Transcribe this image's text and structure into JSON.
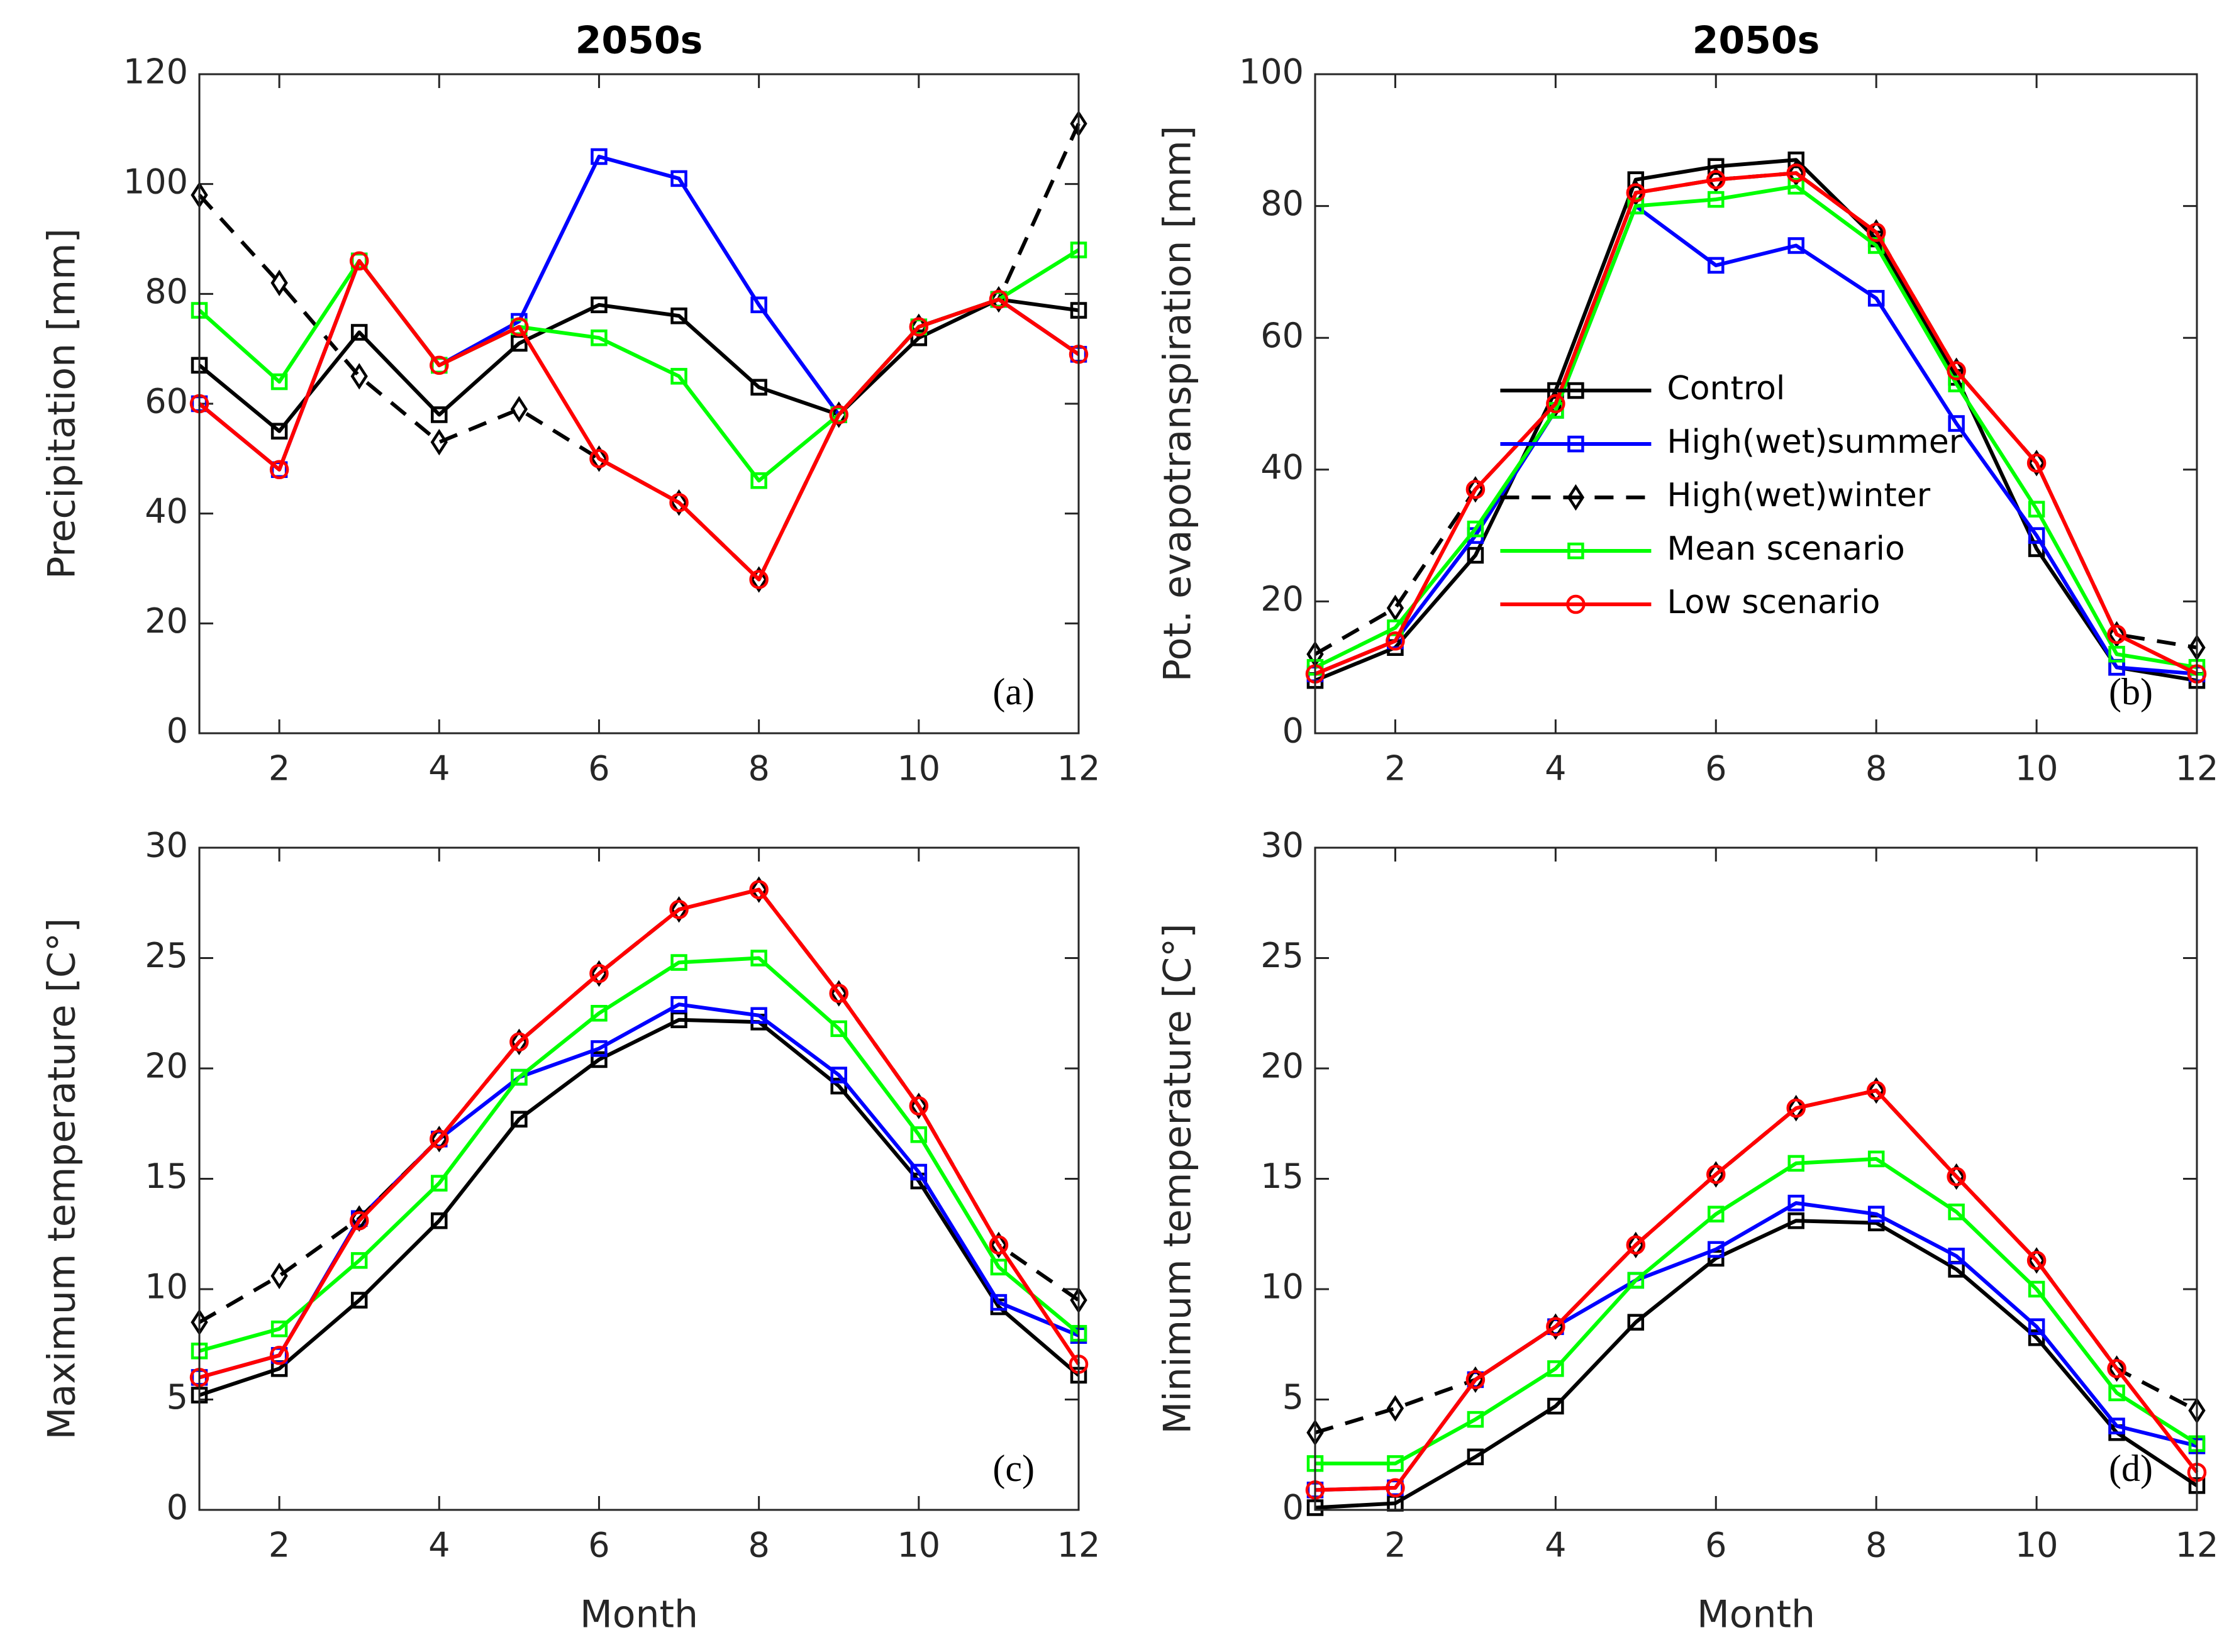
{
  "chart_data": [
    {
      "type": "line",
      "title": "2050s",
      "ylabel": "Precipitation [mm]",
      "annotation": "(a)",
      "x": [
        1,
        2,
        3,
        4,
        5,
        6,
        7,
        8,
        9,
        10,
        11,
        12
      ],
      "xlim": [
        1,
        12
      ],
      "xticks": [
        2,
        4,
        6,
        8,
        10,
        12
      ],
      "ylim": [
        0,
        120
      ],
      "yticks": [
        0,
        20,
        40,
        60,
        80,
        100,
        120
      ],
      "series": [
        {
          "color": "#000000",
          "marker": "square",
          "style": "solid",
          "values": [
            67,
            55,
            73,
            58,
            71,
            78,
            76,
            63,
            58,
            72,
            79,
            77
          ]
        },
        {
          "color": "#0000ff",
          "marker": "square",
          "style": "solid",
          "values": [
            60,
            48,
            86,
            67,
            75,
            105,
            101,
            78,
            58,
            74,
            79,
            69
          ]
        },
        {
          "color": "#000000",
          "marker": "diamond",
          "style": "dashed",
          "values": [
            98,
            82,
            65,
            53,
            59,
            50,
            42,
            28,
            58,
            74,
            79,
            111
          ]
        },
        {
          "color": "#00ff00",
          "marker": "square",
          "style": "solid",
          "values": [
            77,
            64,
            86,
            67,
            74,
            72,
            65,
            46,
            58,
            74,
            79,
            88
          ]
        },
        {
          "color": "#ff0000",
          "marker": "circle",
          "style": "solid",
          "values": [
            60,
            48,
            86,
            67,
            74,
            50,
            42,
            28,
            58,
            74,
            79,
            69
          ]
        }
      ]
    },
    {
      "type": "line",
      "title": "2050s",
      "ylabel": "Pot. evapotranspiration [mm]",
      "annotation": "(b)",
      "legend": "center-left",
      "x": [
        1,
        2,
        3,
        4,
        5,
        6,
        7,
        8,
        9,
        10,
        11,
        12
      ],
      "xlim": [
        1,
        12
      ],
      "xticks": [
        2,
        4,
        6,
        8,
        10,
        12
      ],
      "ylim": [
        0,
        100
      ],
      "yticks": [
        0,
        20,
        40,
        60,
        80,
        100
      ],
      "series": [
        {
          "name": "Control",
          "color": "#000000",
          "marker": "square",
          "style": "solid",
          "values": [
            8,
            13,
            27,
            52,
            84,
            86,
            87,
            75,
            54,
            28,
            10,
            8
          ]
        },
        {
          "name": "High(wet)summer",
          "color": "#0000ff",
          "marker": "square",
          "style": "solid",
          "values": [
            9,
            14,
            30,
            49,
            80,
            71,
            74,
            66,
            47,
            30,
            10,
            9
          ]
        },
        {
          "name": "High(wet)winter",
          "color": "#000000",
          "marker": "diamond",
          "style": "dashed",
          "values": [
            12,
            19,
            37,
            50,
            82,
            84,
            85,
            76,
            55,
            41,
            15,
            13
          ]
        },
        {
          "name": "Mean scenario",
          "color": "#00ff00",
          "marker": "square",
          "style": "solid",
          "values": [
            10,
            16,
            31,
            49,
            80,
            81,
            83,
            74,
            53,
            34,
            12,
            10
          ]
        },
        {
          "name": "Low scenario",
          "color": "#ff0000",
          "marker": "circle",
          "style": "solid",
          "values": [
            9,
            14,
            37,
            50,
            82,
            84,
            85,
            76,
            55,
            41,
            15,
            9
          ]
        }
      ]
    },
    {
      "type": "line",
      "xlabel": "Month",
      "ylabel": "Maximum temperature [C°]",
      "annotation": "(c)",
      "x": [
        1,
        2,
        3,
        4,
        5,
        6,
        7,
        8,
        9,
        10,
        11,
        12
      ],
      "xlim": [
        1,
        12
      ],
      "xticks": [
        2,
        4,
        6,
        8,
        10,
        12
      ],
      "ylim": [
        0,
        30
      ],
      "yticks": [
        0,
        5,
        10,
        15,
        20,
        25,
        30
      ],
      "series": [
        {
          "color": "#000000",
          "marker": "square",
          "style": "solid",
          "values": [
            5.2,
            6.4,
            9.5,
            13.1,
            17.7,
            20.4,
            22.2,
            22.1,
            19.2,
            14.9,
            9.2,
            6.1
          ]
        },
        {
          "color": "#0000ff",
          "marker": "square",
          "style": "solid",
          "values": [
            6,
            7,
            13.2,
            16.8,
            19.6,
            20.9,
            22.9,
            22.4,
            19.7,
            15.3,
            9.4,
            7.9
          ]
        },
        {
          "color": "#000000",
          "marker": "diamond",
          "style": "dashed",
          "values": [
            8.5,
            10.6,
            13.2,
            16.8,
            21.2,
            24.3,
            27.2,
            28.1,
            23.4,
            18.3,
            12,
            9.5
          ]
        },
        {
          "color": "#00ff00",
          "marker": "square",
          "style": "solid",
          "values": [
            7.2,
            8.2,
            11.3,
            14.8,
            19.6,
            22.5,
            24.8,
            25,
            21.8,
            17,
            11,
            8
          ]
        },
        {
          "color": "#ff0000",
          "marker": "circle",
          "style": "solid",
          "values": [
            6,
            7,
            13.1,
            16.8,
            21.2,
            24.3,
            27.2,
            28.1,
            23.4,
            18.3,
            12,
            6.6
          ]
        }
      ]
    },
    {
      "type": "line",
      "xlabel": "Month",
      "ylabel": "Minimum temperature [C°]",
      "annotation": "(d)",
      "x": [
        1,
        2,
        3,
        4,
        5,
        6,
        7,
        8,
        9,
        10,
        11,
        12
      ],
      "xlim": [
        1,
        12
      ],
      "xticks": [
        2,
        4,
        6,
        8,
        10,
        12
      ],
      "ylim": [
        0,
        30
      ],
      "yticks": [
        0,
        5,
        10,
        15,
        20,
        25,
        30
      ],
      "series": [
        {
          "color": "#000000",
          "marker": "square",
          "style": "solid",
          "values": [
            0.1,
            0.3,
            2.4,
            4.7,
            8.5,
            11.4,
            13.1,
            13,
            10.9,
            7.8,
            3.5,
            1.1
          ]
        },
        {
          "color": "#0000ff",
          "marker": "square",
          "style": "solid",
          "values": [
            0.9,
            1,
            5.9,
            8.3,
            10.4,
            11.8,
            13.9,
            13.4,
            11.5,
            8.3,
            3.8,
            2.9
          ]
        },
        {
          "color": "#000000",
          "marker": "diamond",
          "style": "dashed",
          "values": [
            3.5,
            4.6,
            5.9,
            8.3,
            12,
            15.2,
            18.2,
            19,
            15.1,
            11.3,
            6.4,
            4.5
          ]
        },
        {
          "color": "#00ff00",
          "marker": "square",
          "style": "solid",
          "values": [
            2.1,
            2.1,
            4.1,
            6.4,
            10.4,
            13.4,
            15.7,
            15.9,
            13.5,
            10,
            5.3,
            3
          ]
        },
        {
          "color": "#ff0000",
          "marker": "circle",
          "style": "solid",
          "values": [
            0.9,
            1,
            5.9,
            8.3,
            12,
            15.2,
            18.2,
            19,
            15.1,
            11.3,
            6.4,
            1.7
          ]
        }
      ]
    }
  ]
}
